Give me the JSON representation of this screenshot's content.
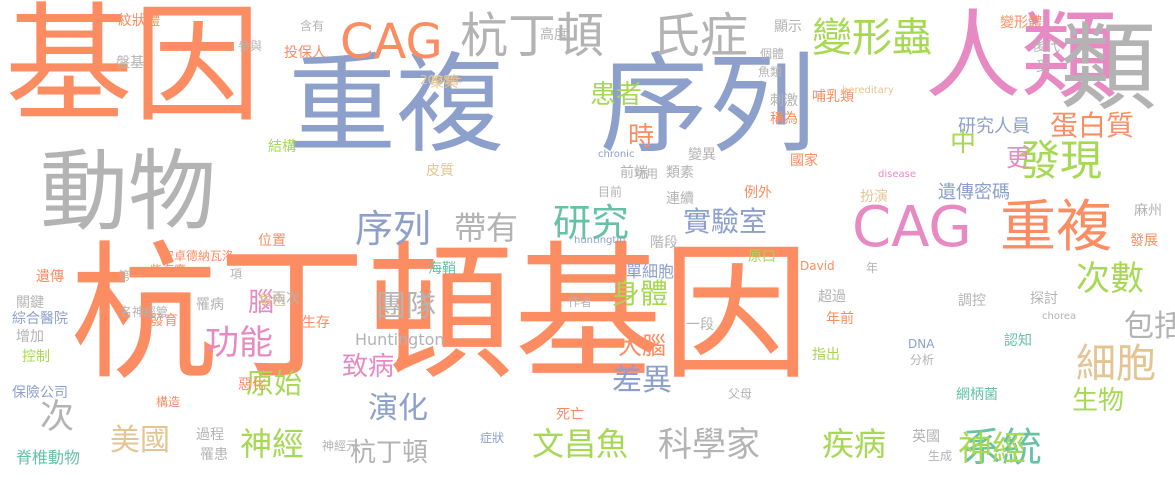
{
  "colors": {
    "orange": "#fc8d62",
    "blue": "#8da0cb",
    "pink": "#e78ac3",
    "green": "#66c2a5",
    "lime": "#a6d854",
    "yellow": "#e8c516",
    "tan": "#e5c494",
    "gray": "#b3b3b3"
  },
  "words": [
    "基因",
    "重複",
    "序列",
    "人類",
    "動物",
    "杭丁頓基因",
    "杭丁頓",
    "氏症",
    "變形蟲",
    "類",
    "發現",
    "重複",
    "CAG",
    "CAG",
    "序列",
    "帶有",
    "研究",
    "實驗室",
    "次數",
    "細胞",
    "包括",
    "蛋白質",
    "研究人員",
    "遺傳密碼",
    "美國",
    "神經",
    "系統",
    "疾病",
    "科學家",
    "文昌魚",
    "杭丁頓",
    "演化",
    "功能",
    "原始",
    "腦",
    "團隊",
    "致病",
    "差異",
    "大腦",
    "身體",
    "患者",
    "時",
    "中",
    "更",
    "生物",
    "神經",
    "次",
    "Huntington",
    "單細胞",
    "階段",
    "過程",
    "結構",
    "角色",
    "位置",
    "發育",
    "遺傳",
    "關鍵",
    "綜合醫院",
    "增加",
    "控制",
    "保險公司",
    "脊椎動物",
    "罹患",
    "惡化",
    "神經元",
    "症狀",
    "死亡",
    "生存",
    "一段",
    "年前",
    "超過",
    "兩次",
    "罹病",
    "海鞘",
    "第一",
    "柴海鷹",
    "名神經管",
    "聚集",
    "皮質",
    "前端",
    "連續",
    "類素",
    "變異",
    "國家",
    "稱為",
    "哺乳類",
    "刺激",
    "扮演",
    "例外",
    "原口",
    "指出",
    "認知",
    "網柄菌",
    "麻州",
    "發展",
    "英國",
    "後代",
    "受",
    "變形體",
    "顯示",
    "個體",
    "魚類",
    "高度",
    "紋狀體",
    "盤基",
    "投保人",
    "含有",
    "參與",
    "安卓德納瓦洛",
    "探討",
    "調控",
    "生成",
    "2008年",
    "chronic",
    "disease",
    "hereditary",
    "huntingtin",
    "DNA",
    "David",
    "chorea",
    "父母",
    "分析",
    "項",
    "年",
    "作者",
    "功用",
    "目前",
    "構造"
  ]
}
